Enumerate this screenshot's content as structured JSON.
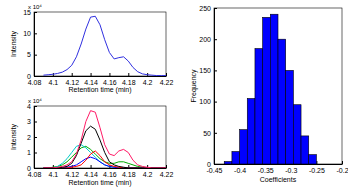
{
  "chart_data": [
    {
      "type": "line",
      "x_label": "Retention time (min)",
      "y_label": "Intensity",
      "annotations": [
        "x 10⁴"
      ],
      "x": [
        4.09,
        4.095,
        4.1,
        4.105,
        4.11,
        4.115,
        4.12,
        4.125,
        4.13,
        4.135,
        4.14,
        4.145,
        4.15,
        4.155,
        4.16,
        4.165,
        4.17,
        4.175,
        4.18,
        4.185,
        4.19,
        4.195,
        4.2,
        4.205,
        4.21,
        4.215,
        4.22
      ],
      "series": [
        {
          "color": "#3030e0",
          "values": [
            0.2,
            0.3,
            0.4,
            0.6,
            0.9,
            1.5,
            2.5,
            4.5,
            7.5,
            11,
            13.8,
            14,
            12,
            8.5,
            5.5,
            4,
            4.3,
            4.5,
            3.5,
            2,
            1,
            0.5,
            0.3,
            0.2,
            0.1,
            0.1,
            0.1
          ]
        }
      ],
      "xlim": [
        4.08,
        4.22
      ],
      "xticks": [
        4.08,
        4.1,
        4.12,
        4.14,
        4.16,
        4.18,
        4.2,
        4.22
      ],
      "ylim": [
        0,
        15
      ],
      "yticks": [
        0,
        5,
        10,
        15
      ]
    },
    {
      "type": "line",
      "x_label": "Retention time (min)",
      "y_label": "Intensity",
      "annotations": [
        "x 10⁴"
      ],
      "x": [
        4.09,
        4.095,
        4.1,
        4.105,
        4.11,
        4.115,
        4.12,
        4.125,
        4.13,
        4.135,
        4.14,
        4.145,
        4.15,
        4.155,
        4.16,
        4.165,
        4.17,
        4.175,
        4.18,
        4.185,
        4.19,
        4.195,
        4.2,
        4.205,
        4.21,
        4.215,
        4.22
      ],
      "series": [
        {
          "color": "#00aa00",
          "values": [
            0,
            0,
            0.05,
            0.1,
            0.2,
            0.4,
            0.7,
            1.0,
            1.3,
            1.4,
            1.2,
            0.9,
            0.6,
            0.4,
            0.3,
            0.3,
            0.4,
            0.4,
            0.3,
            0.2,
            0.1,
            0.05,
            0,
            0,
            0,
            0,
            0
          ]
        },
        {
          "color": "#00cccc",
          "values": [
            0,
            0,
            0,
            0.1,
            0.3,
            0.6,
            1.0,
            1.4,
            1.5,
            1.3,
            1.0,
            0.7,
            0.4,
            0.2,
            0.1,
            0.05,
            0,
            0,
            0,
            0,
            0,
            0,
            0,
            0,
            0,
            0,
            0
          ]
        },
        {
          "color": "#0000ff",
          "values": [
            0,
            0,
            0,
            0,
            0,
            0.05,
            0.1,
            0.2,
            0.4,
            0.6,
            0.7,
            0.6,
            0.4,
            0.2,
            0.1,
            0.05,
            0,
            0,
            0,
            0,
            0,
            0,
            0,
            0,
            0,
            0,
            0
          ]
        },
        {
          "color": "#ff0000",
          "values": [
            0,
            0,
            0,
            0,
            0,
            0,
            0.05,
            0.1,
            0.2,
            0.5,
            0.9,
            1.1,
            0.8,
            0.4,
            0.2,
            0.1,
            0.05,
            0,
            0,
            0,
            0,
            0,
            0,
            0,
            0,
            0,
            0
          ]
        },
        {
          "color": "#000000",
          "values": [
            0,
            0,
            0,
            0,
            0.05,
            0.1,
            0.3,
            0.8,
            1.6,
            2.4,
            2.7,
            2.5,
            1.8,
            1.0,
            0.4,
            0.2,
            0.1,
            0.05,
            0,
            0,
            0,
            0,
            0,
            0,
            0,
            0,
            0
          ]
        },
        {
          "color": "#ff1a66",
          "values": [
            0,
            0,
            0,
            0.05,
            0.1,
            0.2,
            0.4,
            0.9,
            1.8,
            3.0,
            3.7,
            3.6,
            2.6,
            1.5,
            0.9,
            0.8,
            1.1,
            1.2,
            1.0,
            0.5,
            0.2,
            0.1,
            0.05,
            0,
            0,
            0,
            0
          ]
        }
      ],
      "xlim": [
        4.08,
        4.22
      ],
      "xticks": [
        4.08,
        4.1,
        4.12,
        4.14,
        4.16,
        4.18,
        4.2,
        4.22
      ],
      "ylim": [
        0,
        4
      ],
      "yticks": [
        0,
        1,
        2,
        3,
        4
      ]
    },
    {
      "type": "histogram",
      "x_label": "Coefficients",
      "y_label": "Frequency",
      "color": "#0000ff",
      "bins": [
        -0.43,
        -0.415,
        -0.4,
        -0.385,
        -0.37,
        -0.355,
        -0.34,
        -0.325,
        -0.31,
        -0.295,
        -0.28,
        -0.265,
        -0.25
      ],
      "values": [
        4,
        20,
        55,
        105,
        185,
        235,
        240,
        200,
        150,
        95,
        45,
        15
      ],
      "xlim": [
        -0.45,
        -0.2
      ],
      "xticks": [
        -0.45,
        -0.4,
        -0.35,
        -0.3,
        -0.25,
        -0.2
      ],
      "ylim": [
        0,
        250
      ],
      "yticks": [
        0,
        50,
        100,
        150,
        200,
        250
      ]
    }
  ]
}
